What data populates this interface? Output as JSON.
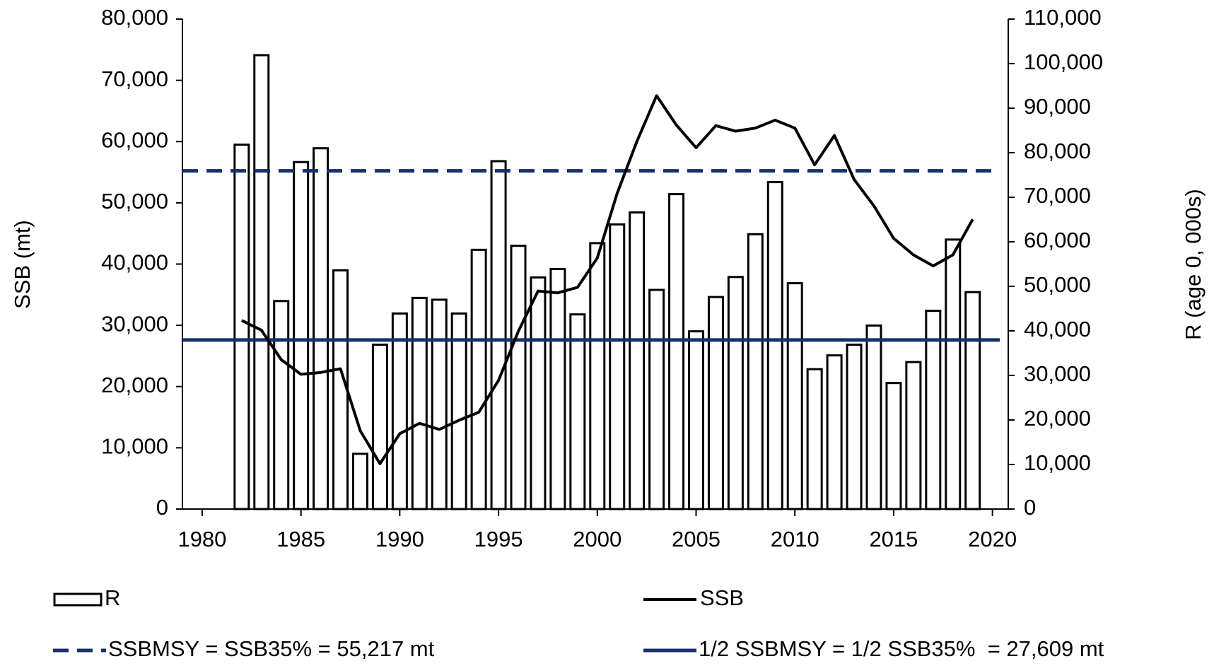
{
  "chart_data": {
    "type": "bar",
    "x": [
      1982,
      1983,
      1984,
      1985,
      1986,
      1987,
      1988,
      1989,
      1990,
      1991,
      1992,
      1993,
      1994,
      1995,
      1996,
      1997,
      1998,
      1999,
      2000,
      2001,
      2002,
      2003,
      2004,
      2005,
      2006,
      2007,
      2008,
      2009,
      2010,
      2011,
      2012,
      2013,
      2014,
      2015,
      2016,
      2017,
      2018,
      2019
    ],
    "series": [
      {
        "name": "R",
        "type": "bar",
        "axis": "y2",
        "color": "#ffffff",
        "values": [
          81800,
          101900,
          46700,
          77900,
          81000,
          53600,
          12400,
          36900,
          43900,
          47400,
          47000,
          43900,
          58200,
          78100,
          59100,
          52000,
          53900,
          43700,
          59700,
          63900,
          66600,
          49200,
          70700,
          39900,
          47600,
          52100,
          61700,
          73400,
          50700,
          31400,
          34500,
          36900,
          41200,
          28300,
          33000,
          44500,
          60500,
          48700
        ]
      },
      {
        "name": "SSB",
        "type": "line",
        "color": "#000000",
        "values": [
          30800,
          29200,
          24400,
          22000,
          22300,
          22900,
          12800,
          7400,
          12300,
          14000,
          13000,
          14500,
          15800,
          21000,
          29000,
          35600,
          35300,
          36200,
          41000,
          51500,
          60000,
          67500,
          62700,
          59000,
          62600,
          61700,
          62200,
          63500,
          62200,
          56200,
          61000,
          53800,
          49500,
          44200,
          41500,
          39700,
          41500,
          47300
        ]
      }
    ],
    "reference_lines": [
      {
        "name": "SSBMSY = SSB35% = 55,217 mt",
        "value": 55217,
        "color": "#172f6b",
        "dashed": true
      },
      {
        "name": "1/2 SSBMSY = 1/2 SSB35%  = 27,609 mt",
        "value": 27609,
        "color": "#172f6b",
        "dashed": false
      }
    ],
    "y_label": "SSB (mt)",
    "y2_label": "R (age 0, 000s)",
    "xlim": [
      1979,
      2020.8
    ],
    "xticks": [
      1980,
      1985,
      1990,
      1995,
      2000,
      2005,
      2010,
      2015,
      2020
    ],
    "ylim": [
      0,
      80000
    ],
    "yticks": [
      0,
      {
        "value": 10000,
        "label": "10,000"
      },
      {
        "value": 20000,
        "label": "20,000"
      },
      {
        "value": 30000,
        "label": "30,000"
      },
      {
        "value": 40000,
        "label": "40,000"
      },
      {
        "value": 50000,
        "label": "50,000"
      },
      {
        "value": 60000,
        "label": "60,000"
      },
      {
        "value": 70000,
        "label": "70,000"
      },
      {
        "value": 80000,
        "label": "80,000"
      }
    ],
    "y2lim": [
      0,
      110000
    ],
    "y2ticks": [
      0,
      {
        "value": 10000,
        "label": "10,000"
      },
      {
        "value": 20000,
        "label": "20,000"
      },
      {
        "value": 30000,
        "label": "30,000"
      },
      {
        "value": 40000,
        "label": "40,000"
      },
      {
        "value": 50000,
        "label": "50,000"
      },
      {
        "value": 60000,
        "label": "60,000"
      },
      {
        "value": 70000,
        "label": "70,000"
      },
      {
        "value": 80000,
        "label": "80,000"
      },
      {
        "value": 90000,
        "label": "90,000"
      },
      {
        "value": 100000,
        "label": "100,000"
      },
      {
        "value": 110000,
        "label": "110,000"
      }
    ],
    "grid": false
  }
}
